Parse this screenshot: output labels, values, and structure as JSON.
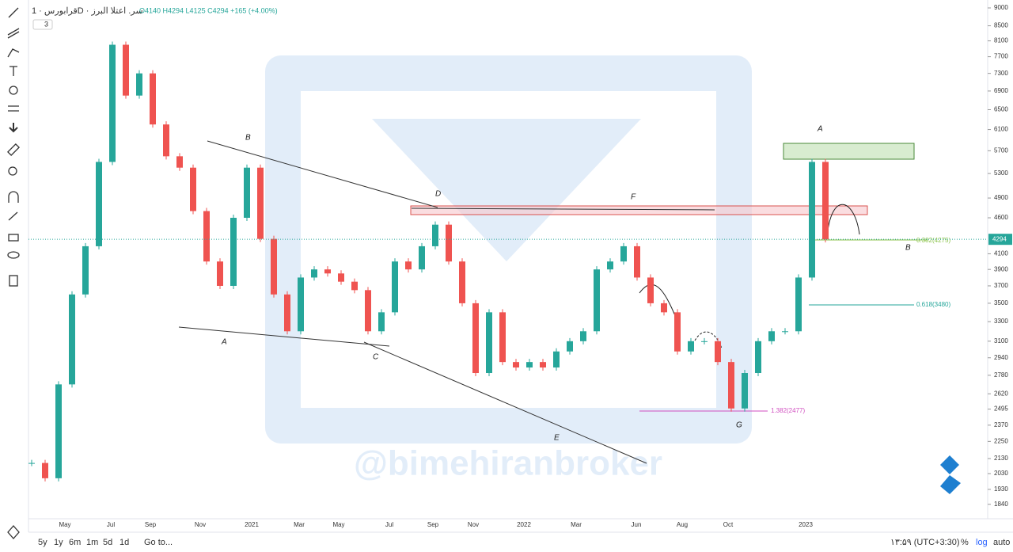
{
  "header": {
    "symbol": "قرابورس · 1D · سر. اعتلا البرز",
    "ohlc": "O4140 H4294 L4125 C4294 +165 (+4.00%)",
    "indicators": "3"
  },
  "chart_data": {
    "type": "candlestick",
    "log": true,
    "values": [
      2100,
      2000,
      2700,
      3600,
      4200,
      5500,
      8000,
      6800,
      7300,
      6200,
      5600,
      5400,
      4700,
      4000,
      3700,
      4600,
      5400,
      4300,
      3600,
      3200,
      3800,
      3900,
      3850,
      3750,
      3650,
      3200,
      3400,
      4000,
      3900,
      4200,
      4500,
      4000,
      3500,
      2800,
      3400,
      2900,
      2850,
      2900,
      2850,
      3000,
      3100,
      3200,
      3900,
      4000,
      4200,
      3800,
      3500,
      3400,
      3000,
      3100,
      3100,
      2900,
      2500,
      2800,
      3100,
      3200,
      3200,
      3800,
      5500,
      4294
    ],
    "last_price": 4294,
    "ylim": [
      1757,
      9231
    ],
    "yticks": [
      9000,
      8500,
      8100,
      7700,
      7300,
      6900,
      6500,
      6100,
      5700,
      5300,
      4900,
      4600,
      4100,
      3900,
      3700,
      3500,
      3300,
      3100,
      2940,
      2780,
      2620,
      2495,
      2370,
      2250,
      2130,
      2030,
      1930,
      1840
    ],
    "xticks": [
      "May",
      "Jul",
      "Sep",
      "Nov",
      "2021",
      "Mar",
      "May",
      "Jul",
      "Sep",
      "Nov",
      "2022",
      "Mar",
      "Jun",
      "Aug",
      "Oct",
      "2023"
    ],
    "up_color": "#26a69a",
    "down_color": "#ef5350",
    "annotations": [
      "B",
      "D",
      "F",
      "A",
      "A",
      "C",
      "E",
      "G",
      "B"
    ],
    "fib_labels": [
      "0.382(4275)",
      "0.618(3480)",
      "1.382(2477)"
    ],
    "watermark": "@bimehiranbroker"
  },
  "footer": {
    "ranges": [
      "5y",
      "1y",
      "6m",
      "1m",
      "5d",
      "1d"
    ],
    "goto": "Go to...",
    "clock": "۱۳:۵۹ (UTC+3:30)",
    "percent": "%",
    "log": "log",
    "auto": "auto"
  }
}
